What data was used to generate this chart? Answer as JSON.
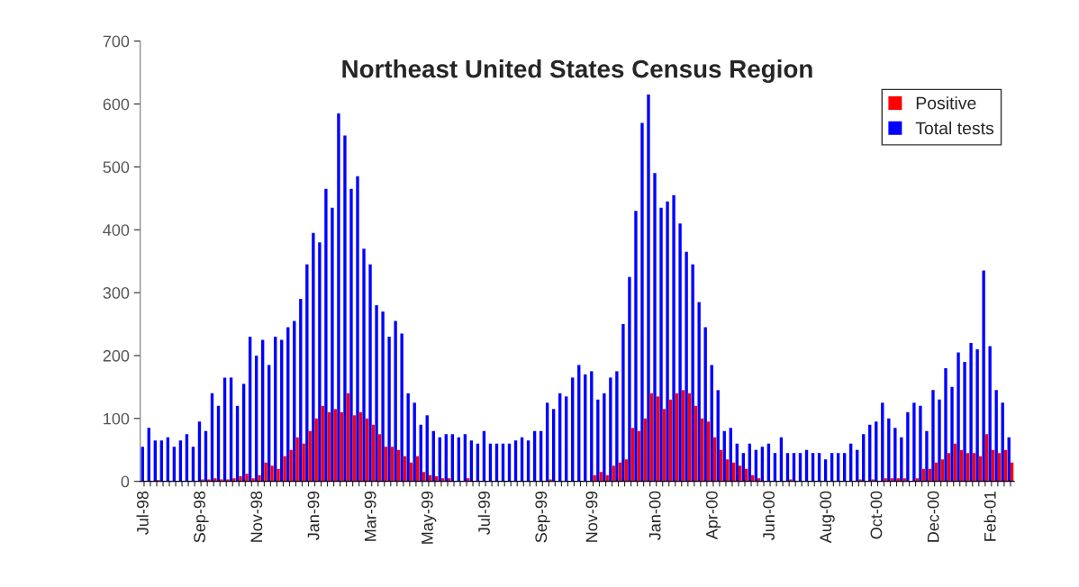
{
  "chart_data": {
    "type": "bar",
    "title": "Northeast United States Census Region",
    "categories": [
      "Jul-98",
      null,
      null,
      null,
      null,
      null,
      null,
      null,
      null,
      "Sep-98",
      null,
      null,
      null,
      null,
      null,
      null,
      null,
      null,
      "Nov-98",
      null,
      null,
      null,
      null,
      null,
      null,
      null,
      null,
      "Jan-99",
      null,
      null,
      null,
      null,
      null,
      null,
      null,
      null,
      "Mar-99",
      null,
      null,
      null,
      null,
      null,
      null,
      null,
      null,
      "May-99",
      null,
      null,
      null,
      null,
      null,
      null,
      null,
      null,
      "Jul-99",
      null,
      null,
      null,
      null,
      null,
      null,
      null,
      null,
      "Sep-99",
      null,
      null,
      null,
      null,
      null,
      null,
      null,
      "Nov-99",
      null,
      null,
      null,
      null,
      null,
      null,
      null,
      null,
      null,
      "Jan-00",
      null,
      null,
      null,
      null,
      null,
      null,
      null,
      null,
      "Apr-00",
      null,
      null,
      null,
      null,
      null,
      null,
      null,
      null,
      "Jun-00",
      null,
      null,
      null,
      null,
      null,
      null,
      null,
      null,
      "Aug-00",
      null,
      null,
      null,
      null,
      null,
      null,
      null,
      "Oct-00",
      null,
      null,
      null,
      null,
      null,
      null,
      null,
      null,
      "Dec-00",
      null,
      null,
      null,
      null,
      null,
      null,
      null,
      null,
      "Feb-01",
      null,
      null,
      null
    ],
    "series": [
      {
        "name": "Total tests",
        "color": "#0000ff",
        "values": [
          55,
          85,
          65,
          65,
          70,
          55,
          65,
          75,
          55,
          95,
          80,
          140,
          120,
          165,
          165,
          120,
          155,
          230,
          200,
          225,
          185,
          230,
          225,
          245,
          255,
          290,
          345,
          395,
          380,
          465,
          435,
          585,
          550,
          465,
          485,
          370,
          345,
          280,
          270,
          230,
          255,
          235,
          140,
          125,
          90,
          105,
          80,
          70,
          75,
          75,
          70,
          75,
          65,
          60,
          80,
          60,
          60,
          60,
          60,
          65,
          70,
          65,
          80,
          80,
          125,
          115,
          140,
          135,
          165,
          185,
          170,
          175,
          130,
          140,
          165,
          175,
          250,
          325,
          430,
          570,
          615,
          490,
          435,
          445,
          455,
          410,
          365,
          345,
          285,
          245,
          185,
          145,
          80,
          85,
          60,
          45,
          60,
          50,
          55,
          60,
          45,
          70,
          45,
          45,
          45,
          50,
          45,
          45,
          35,
          45,
          45,
          45,
          60,
          50,
          75,
          90,
          95,
          125,
          100,
          85,
          70,
          110,
          125,
          120,
          80,
          145,
          130,
          180,
          150,
          205,
          190,
          220,
          210,
          335,
          215,
          145,
          125,
          70
        ]
      },
      {
        "name": "Positive",
        "color": "#ff0000",
        "values": [
          0,
          0,
          2,
          0,
          0,
          0,
          0,
          0,
          null,
          3,
          3,
          5,
          3,
          3,
          5,
          8,
          12,
          5,
          10,
          30,
          25,
          20,
          40,
          50,
          70,
          60,
          80,
          100,
          120,
          110,
          115,
          110,
          140,
          105,
          110,
          100,
          90,
          75,
          55,
          55,
          50,
          40,
          30,
          40,
          15,
          10,
          8,
          5,
          5,
          null,
          0,
          5,
          null,
          0,
          0,
          0,
          0,
          0,
          0,
          0,
          0,
          0,
          0,
          0,
          3,
          0,
          0,
          0,
          0,
          0,
          0,
          10,
          15,
          10,
          25,
          30,
          35,
          85,
          80,
          100,
          140,
          135,
          115,
          130,
          140,
          145,
          140,
          120,
          100,
          95,
          70,
          50,
          35,
          30,
          25,
          20,
          10,
          5,
          null,
          0,
          0,
          0,
          3,
          0,
          0,
          0,
          0,
          0,
          0,
          0,
          0,
          0,
          0,
          3,
          0,
          3,
          0,
          5,
          5,
          5,
          5,
          null,
          5,
          20,
          20,
          30,
          35,
          45,
          60,
          50,
          45,
          45,
          40,
          75,
          50,
          45,
          50,
          30
        ]
      }
    ],
    "ylim": [
      0,
      700
    ],
    "yticks": [
      0,
      100,
      200,
      300,
      400,
      500,
      600,
      700
    ],
    "legend": "top right",
    "grid": false
  }
}
